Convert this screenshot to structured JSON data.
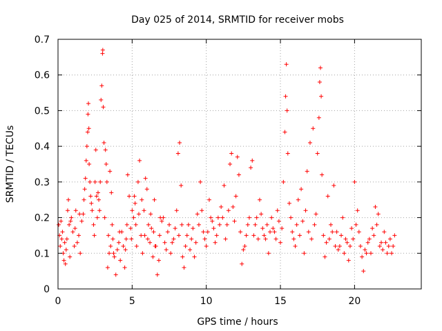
{
  "chart_data": {
    "type": "scatter",
    "title": "Day 025 of 2014, SRMTID for receiver mobs",
    "xlabel": "GPS time / hours",
    "ylabel": "SRMTID / TECUs",
    "xlim": [
      0,
      24.5
    ],
    "ylim": [
      0,
      0.7
    ],
    "x_ticks": [
      0,
      5,
      10,
      15,
      20
    ],
    "y_ticks": [
      0,
      0.1,
      0.2,
      0.3,
      0.4,
      0.5,
      0.6,
      0.7
    ],
    "x_tick_labels": [
      "0",
      "5",
      "10",
      "15",
      "20"
    ],
    "y_tick_labels": [
      "0",
      "0.1",
      "0.2",
      "0.3",
      "0.4",
      "0.5",
      "0.6",
      "0.7"
    ],
    "grid": true,
    "marker": "plus",
    "color": "#ff0000",
    "series": [
      {
        "name": "mobs",
        "points": [
          [
            0.05,
            0.18
          ],
          [
            0.1,
            0.15
          ],
          [
            0.15,
            0.12
          ],
          [
            0.2,
            0.19
          ],
          [
            0.3,
            0.16
          ],
          [
            0.35,
            0.1
          ],
          [
            0.4,
            0.08
          ],
          [
            0.45,
            0.13
          ],
          [
            0.5,
            0.07
          ],
          [
            0.55,
            0.11
          ],
          [
            0.6,
            0.14
          ],
          [
            0.65,
            0.22
          ],
          [
            0.7,
            0.25
          ],
          [
            0.75,
            0.18
          ],
          [
            0.8,
            0.09
          ],
          [
            0.9,
            0.2
          ],
          [
            1.0,
            0.16
          ],
          [
            1.1,
            0.12
          ],
          [
            1.2,
            0.22
          ],
          [
            1.3,
            0.13
          ],
          [
            1.4,
            0.15
          ],
          [
            1.5,
            0.1
          ],
          [
            1.6,
            0.19
          ],
          [
            1.7,
            0.21
          ],
          [
            1.75,
            0.25
          ],
          [
            1.8,
            0.28
          ],
          [
            1.85,
            0.31
          ],
          [
            1.9,
            0.36
          ],
          [
            1.95,
            0.4
          ],
          [
            2.0,
            0.44
          ],
          [
            2.02,
            0.49
          ],
          [
            2.05,
            0.52
          ],
          [
            2.08,
            0.45
          ],
          [
            2.1,
            0.35
          ],
          [
            2.15,
            0.3
          ],
          [
            2.2,
            0.26
          ],
          [
            2.3,
            0.22
          ],
          [
            2.4,
            0.18
          ],
          [
            2.5,
            0.3
          ],
          [
            2.55,
            0.39
          ],
          [
            2.6,
            0.26
          ],
          [
            2.65,
            0.2
          ],
          [
            2.7,
            0.27
          ],
          [
            2.75,
            0.25
          ],
          [
            2.8,
            0.22
          ],
          [
            2.85,
            0.3
          ],
          [
            2.9,
            0.53
          ],
          [
            2.95,
            0.57
          ],
          [
            3.0,
            0.66
          ],
          [
            3.02,
            0.67
          ],
          [
            3.05,
            0.51
          ],
          [
            3.1,
            0.41
          ],
          [
            3.2,
            0.39
          ],
          [
            3.25,
            0.35
          ],
          [
            3.3,
            0.3
          ],
          [
            3.35,
            0.06
          ],
          [
            3.4,
            0.15
          ],
          [
            3.45,
            0.1
          ],
          [
            3.5,
            0.33
          ],
          [
            3.6,
            0.27
          ],
          [
            3.7,
            0.14
          ],
          [
            3.8,
            0.09
          ],
          [
            3.9,
            0.04
          ],
          [
            4.0,
            0.11
          ],
          [
            4.1,
            0.13
          ],
          [
            4.2,
            0.08
          ],
          [
            4.3,
            0.16
          ],
          [
            4.4,
            0.12
          ],
          [
            4.5,
            0.06
          ],
          [
            4.6,
            0.14
          ],
          [
            4.7,
            0.32
          ],
          [
            4.8,
            0.26
          ],
          [
            4.9,
            0.17
          ],
          [
            5.0,
            0.22
          ],
          [
            5.1,
            0.2
          ],
          [
            5.2,
            0.24
          ],
          [
            5.3,
            0.12
          ],
          [
            5.4,
            0.3
          ],
          [
            5.5,
            0.36
          ],
          [
            5.6,
            0.15
          ],
          [
            5.7,
            0.1
          ],
          [
            5.8,
            0.22
          ],
          [
            5.9,
            0.31
          ],
          [
            6.0,
            0.28
          ],
          [
            6.1,
            0.18
          ],
          [
            6.2,
            0.13
          ],
          [
            6.3,
            0.17
          ],
          [
            6.4,
            0.09
          ],
          [
            6.5,
            0.25
          ],
          [
            6.6,
            0.12
          ],
          [
            6.7,
            0.04
          ],
          [
            6.8,
            0.08
          ],
          [
            6.9,
            0.2
          ],
          [
            7.0,
            0.19
          ],
          [
            7.2,
            0.13
          ],
          [
            7.4,
            0.16
          ],
          [
            7.6,
            0.1
          ],
          [
            7.8,
            0.14
          ],
          [
            8.0,
            0.22
          ],
          [
            8.1,
            0.38
          ],
          [
            8.2,
            0.41
          ],
          [
            8.3,
            0.29
          ],
          [
            8.4,
            0.09
          ],
          [
            8.5,
            0.06
          ],
          [
            8.6,
            0.12
          ],
          [
            8.8,
            0.18
          ],
          [
            9.0,
            0.14
          ],
          [
            9.2,
            0.09
          ],
          [
            9.4,
            0.21
          ],
          [
            9.6,
            0.3
          ],
          [
            9.8,
            0.16
          ],
          [
            10.0,
            0.12
          ],
          [
            10.2,
            0.25
          ],
          [
            10.4,
            0.19
          ],
          [
            10.6,
            0.13
          ],
          [
            10.8,
            0.2
          ],
          [
            11.0,
            0.23
          ],
          [
            11.2,
            0.29
          ],
          [
            11.4,
            0.18
          ],
          [
            11.6,
            0.35
          ],
          [
            11.7,
            0.38
          ],
          [
            11.8,
            0.23
          ],
          [
            12.0,
            0.26
          ],
          [
            12.1,
            0.37
          ],
          [
            12.2,
            0.32
          ],
          [
            12.3,
            0.16
          ],
          [
            12.4,
            0.07
          ],
          [
            12.6,
            0.12
          ],
          [
            12.8,
            0.18
          ],
          [
            13.0,
            0.34
          ],
          [
            13.1,
            0.36
          ],
          [
            13.2,
            0.15
          ],
          [
            13.4,
            0.2
          ],
          [
            13.6,
            0.25
          ],
          [
            13.8,
            0.17
          ],
          [
            14.0,
            0.14
          ],
          [
            14.2,
            0.1
          ],
          [
            14.4,
            0.2
          ],
          [
            14.6,
            0.16
          ],
          [
            14.8,
            0.22
          ],
          [
            15.0,
            0.13
          ],
          [
            15.2,
            0.3
          ],
          [
            15.3,
            0.44
          ],
          [
            15.35,
            0.54
          ],
          [
            15.4,
            0.63
          ],
          [
            15.45,
            0.5
          ],
          [
            15.5,
            0.38
          ],
          [
            15.6,
            0.24
          ],
          [
            15.8,
            0.16
          ],
          [
            16.0,
            0.12
          ],
          [
            16.2,
            0.25
          ],
          [
            16.4,
            0.28
          ],
          [
            16.6,
            0.1
          ],
          [
            16.8,
            0.33
          ],
          [
            17.0,
            0.41
          ],
          [
            17.2,
            0.45
          ],
          [
            17.4,
            0.21
          ],
          [
            17.5,
            0.38
          ],
          [
            17.6,
            0.48
          ],
          [
            17.65,
            0.58
          ],
          [
            17.7,
            0.62
          ],
          [
            17.75,
            0.54
          ],
          [
            17.8,
            0.32
          ],
          [
            18.0,
            0.09
          ],
          [
            18.2,
            0.26
          ],
          [
            18.4,
            0.18
          ],
          [
            18.6,
            0.29
          ],
          [
            18.8,
            0.16
          ],
          [
            19.0,
            0.12
          ],
          [
            19.2,
            0.2
          ],
          [
            19.4,
            0.14
          ],
          [
            19.6,
            0.08
          ],
          [
            19.8,
            0.17
          ],
          [
            20.0,
            0.3
          ],
          [
            20.2,
            0.22
          ],
          [
            20.4,
            0.12
          ],
          [
            20.6,
            0.05
          ],
          [
            20.8,
            0.1
          ],
          [
            21.0,
            0.14
          ],
          [
            21.2,
            0.17
          ],
          [
            21.4,
            0.23
          ],
          [
            21.6,
            0.21
          ],
          [
            21.8,
            0.13
          ],
          [
            22.0,
            0.16
          ],
          [
            22.2,
            0.1
          ],
          [
            22.4,
            0.14
          ],
          [
            22.6,
            0.12
          ],
          [
            22.7,
            0.15
          ],
          [
            0.25,
            0.14
          ],
          [
            0.85,
            0.19
          ],
          [
            1.15,
            0.17
          ],
          [
            1.45,
            0.21
          ],
          [
            2.25,
            0.24
          ],
          [
            2.45,
            0.15
          ],
          [
            3.15,
            0.2
          ],
          [
            3.55,
            0.12
          ],
          [
            3.65,
            0.18
          ],
          [
            3.75,
            0.1
          ],
          [
            4.15,
            0.16
          ],
          [
            4.55,
            0.11
          ],
          [
            4.65,
            0.18
          ],
          [
            4.95,
            0.14
          ],
          [
            5.15,
            0.26
          ],
          [
            5.25,
            0.18
          ],
          [
            5.45,
            0.21
          ],
          [
            5.65,
            0.25
          ],
          [
            5.85,
            0.15
          ],
          [
            6.05,
            0.14
          ],
          [
            6.25,
            0.21
          ],
          [
            6.45,
            0.16
          ],
          [
            6.55,
            0.12
          ],
          [
            6.85,
            0.15
          ],
          [
            7.1,
            0.2
          ],
          [
            7.3,
            0.11
          ],
          [
            7.5,
            0.18
          ],
          [
            7.7,
            0.13
          ],
          [
            7.9,
            0.17
          ],
          [
            8.15,
            0.15
          ],
          [
            8.35,
            0.18
          ],
          [
            8.7,
            0.15
          ],
          [
            8.9,
            0.11
          ],
          [
            9.1,
            0.17
          ],
          [
            9.3,
            0.13
          ],
          [
            9.5,
            0.18
          ],
          [
            9.7,
            0.22
          ],
          [
            9.9,
            0.14
          ],
          [
            10.1,
            0.16
          ],
          [
            10.3,
            0.2
          ],
          [
            10.5,
            0.17
          ],
          [
            10.7,
            0.15
          ],
          [
            10.9,
            0.18
          ],
          [
            11.1,
            0.2
          ],
          [
            11.3,
            0.14
          ],
          [
            11.5,
            0.22
          ],
          [
            11.9,
            0.19
          ],
          [
            12.5,
            0.11
          ],
          [
            12.7,
            0.15
          ],
          [
            12.9,
            0.2
          ],
          [
            13.3,
            0.18
          ],
          [
            13.5,
            0.14
          ],
          [
            13.7,
            0.21
          ],
          [
            13.9,
            0.15
          ],
          [
            14.1,
            0.18
          ],
          [
            14.3,
            0.16
          ],
          [
            14.5,
            0.17
          ],
          [
            14.7,
            0.14
          ],
          [
            14.9,
            0.19
          ],
          [
            15.1,
            0.17
          ],
          [
            15.7,
            0.2
          ],
          [
            15.9,
            0.14
          ],
          [
            16.1,
            0.18
          ],
          [
            16.3,
            0.15
          ],
          [
            16.5,
            0.19
          ],
          [
            16.7,
            0.22
          ],
          [
            16.9,
            0.16
          ],
          [
            17.1,
            0.14
          ],
          [
            17.3,
            0.18
          ],
          [
            17.9,
            0.15
          ],
          [
            18.1,
            0.13
          ],
          [
            18.3,
            0.14
          ],
          [
            18.5,
            0.16
          ],
          [
            18.7,
            0.12
          ],
          [
            18.9,
            0.11
          ],
          [
            19.1,
            0.15
          ],
          [
            19.3,
            0.1
          ],
          [
            19.5,
            0.13
          ],
          [
            19.7,
            0.12
          ],
          [
            19.9,
            0.14
          ],
          [
            20.1,
            0.18
          ],
          [
            20.3,
            0.16
          ],
          [
            20.5,
            0.09
          ],
          [
            20.7,
            0.11
          ],
          [
            20.9,
            0.13
          ],
          [
            21.1,
            0.1
          ],
          [
            21.3,
            0.15
          ],
          [
            21.5,
            0.18
          ],
          [
            21.7,
            0.12
          ],
          [
            21.9,
            0.11
          ],
          [
            22.1,
            0.13
          ],
          [
            22.3,
            0.12
          ],
          [
            22.5,
            0.1
          ]
        ]
      }
    ]
  }
}
